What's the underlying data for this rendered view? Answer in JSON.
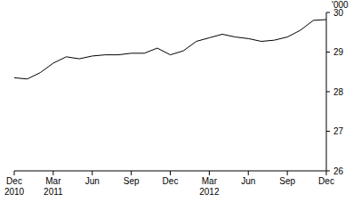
{
  "chart_data": {
    "type": "line",
    "y_label": "'000",
    "categories": [
      "Dec\n2010",
      null,
      null,
      "Mar\n2011",
      null,
      null,
      "Jun",
      null,
      null,
      "Sep",
      null,
      null,
      "Dec",
      null,
      null,
      "Mar\n2012",
      null,
      null,
      "Jun",
      null,
      null,
      "Sep",
      null,
      null,
      "Dec"
    ],
    "values": [
      28.35,
      28.32,
      28.48,
      28.72,
      28.88,
      28.83,
      28.9,
      28.93,
      28.93,
      28.97,
      28.97,
      29.1,
      28.93,
      29.03,
      29.27,
      29.36,
      29.45,
      29.38,
      29.34,
      29.27,
      29.3,
      29.38,
      29.55,
      29.8,
      29.82
    ],
    "color": "#000000",
    "ylim": [
      26,
      30
    ],
    "yticks": [
      26,
      27,
      28,
      29,
      30
    ],
    "grid": false
  }
}
